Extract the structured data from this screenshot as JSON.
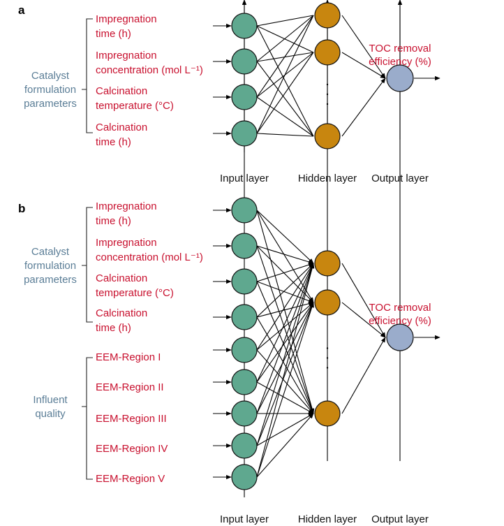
{
  "colors": {
    "input_node": "#5fa88f",
    "hidden_node": "#c8860f",
    "output_node": "#9aaccb",
    "feature_text": "#c8102e",
    "group_text": "#5a7d96"
  },
  "panel_a": {
    "label": "a",
    "group": [
      "Catalyst",
      "formulation",
      "parameters"
    ],
    "features": [
      [
        "Impregnation",
        "time (h)"
      ],
      [
        "Impregnation",
        "concentration (mol L⁻¹)"
      ],
      [
        "Calcination",
        "temperature (°C)"
      ],
      [
        "Calcination",
        "time (h)"
      ]
    ],
    "output": [
      "TOC removal",
      "efficiency (%)"
    ],
    "layers": [
      "Input layer",
      "Hidden layer",
      "Output layer"
    ],
    "ellipsis": "⋮"
  },
  "panel_b": {
    "label": "b",
    "groups": [
      {
        "lines": [
          "Catalyst",
          "formulation",
          "parameters"
        ]
      },
      {
        "lines": [
          "Influent",
          "quality"
        ]
      }
    ],
    "features": [
      [
        "Impregnation",
        "time (h)"
      ],
      [
        "Impregnation",
        "concentration (mol L⁻¹)"
      ],
      [
        "Calcination",
        "temperature (°C)"
      ],
      [
        "Calcination",
        "time (h)"
      ],
      [
        "EEM-Region I"
      ],
      [
        "EEM-Region II"
      ],
      [
        "EEM-Region III"
      ],
      [
        "EEM-Region IV"
      ],
      [
        "EEM-Region V"
      ]
    ],
    "output": [
      "TOC removal",
      "efficiency (%)"
    ],
    "layers": [
      "Input layer",
      "Hidden layer",
      "Output layer"
    ],
    "ellipsis": "⋮"
  }
}
